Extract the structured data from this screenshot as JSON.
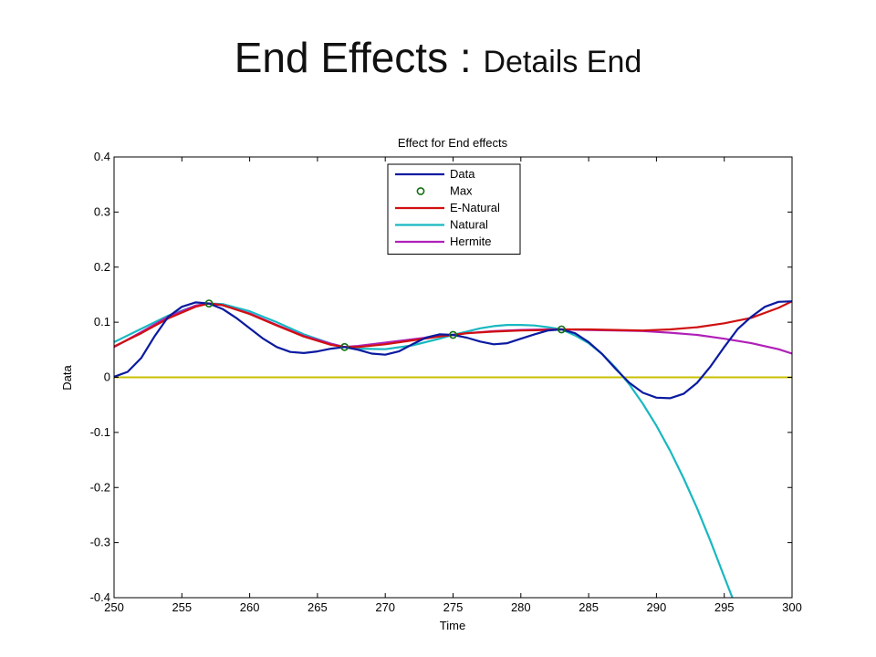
{
  "slide": {
    "title_main": "End Effects : ",
    "title_sub": "Details End"
  },
  "chart_data": {
    "type": "line",
    "title": "Effect for End effects",
    "xlabel": "Time",
    "ylabel": "Data",
    "xlim": [
      250,
      300
    ],
    "ylim": [
      -0.4,
      0.4
    ],
    "xticks": [
      250,
      255,
      260,
      265,
      270,
      275,
      280,
      285,
      290,
      295,
      300
    ],
    "yticks": [
      -0.4,
      -0.3,
      -0.2,
      -0.1,
      0,
      0.1,
      0.2,
      0.3,
      0.4
    ],
    "yticklabels": [
      "-0.4",
      "-0.3",
      "-0.2",
      "-0.1",
      "0",
      "0.1",
      "0.2",
      "0.3",
      "0.4"
    ],
    "grid": false,
    "legend_position": "top-center",
    "zero_line_color": "#c8c000",
    "series": [
      {
        "name": "Data",
        "color": "#0a1aa0",
        "style": "line",
        "x": [
          250,
          251,
          252,
          253,
          254,
          255,
          256,
          257,
          258,
          259,
          260,
          261,
          262,
          263,
          264,
          265,
          266,
          267,
          268,
          269,
          270,
          271,
          272,
          273,
          274,
          275,
          276,
          277,
          278,
          279,
          280,
          281,
          282,
          283,
          284,
          285,
          286,
          287,
          288,
          289,
          290,
          291,
          292,
          293,
          294,
          295,
          296,
          297,
          298,
          299,
          300
        ],
        "y": [
          0.001,
          0.01,
          0.035,
          0.075,
          0.11,
          0.128,
          0.136,
          0.134,
          0.124,
          0.108,
          0.089,
          0.07,
          0.055,
          0.046,
          0.044,
          0.047,
          0.052,
          0.055,
          0.05,
          0.043,
          0.041,
          0.047,
          0.06,
          0.072,
          0.078,
          0.077,
          0.072,
          0.065,
          0.06,
          0.062,
          0.07,
          0.078,
          0.085,
          0.087,
          0.08,
          0.064,
          0.042,
          0.015,
          -0.01,
          -0.028,
          -0.037,
          -0.038,
          -0.03,
          -0.01,
          0.02,
          0.055,
          0.088,
          0.11,
          0.128,
          0.137,
          0.138
        ]
      },
      {
        "name": "Max",
        "color": "#107010",
        "style": "marker",
        "x": [
          257,
          267,
          275,
          283
        ],
        "y": [
          0.134,
          0.055,
          0.077,
          0.087
        ]
      },
      {
        "name": "E-Natural",
        "color": "#d01010",
        "style": "line",
        "x": [
          250,
          252,
          254,
          256,
          257,
          258,
          260,
          262,
          264,
          266,
          267,
          268,
          270,
          272,
          274,
          275,
          276,
          278,
          280,
          282,
          283,
          285,
          287,
          289,
          291,
          293,
          295,
          297,
          299,
          300
        ],
        "y": [
          0.056,
          0.08,
          0.107,
          0.128,
          0.134,
          0.131,
          0.115,
          0.094,
          0.074,
          0.059,
          0.055,
          0.055,
          0.06,
          0.067,
          0.074,
          0.077,
          0.08,
          0.083,
          0.085,
          0.086,
          0.087,
          0.087,
          0.086,
          0.085,
          0.087,
          0.091,
          0.098,
          0.108,
          0.126,
          0.138
        ]
      },
      {
        "name": "Natural",
        "color": "#18b8c0",
        "style": "line",
        "x": [
          250,
          252,
          254,
          256,
          257,
          258,
          260,
          262,
          264,
          266,
          267,
          268,
          270,
          272,
          274,
          275,
          276,
          277,
          278,
          279,
          280,
          281,
          282,
          283,
          284,
          285,
          286,
          287,
          288,
          289,
          290,
          291,
          292,
          293,
          294,
          295,
          295.6
        ],
        "y": [
          0.064,
          0.088,
          0.112,
          0.13,
          0.134,
          0.133,
          0.12,
          0.1,
          0.078,
          0.061,
          0.055,
          0.052,
          0.051,
          0.058,
          0.07,
          0.077,
          0.083,
          0.089,
          0.093,
          0.095,
          0.095,
          0.094,
          0.091,
          0.087,
          0.076,
          0.062,
          0.042,
          0.017,
          -0.013,
          -0.048,
          -0.088,
          -0.133,
          -0.183,
          -0.238,
          -0.298,
          -0.362,
          -0.4
        ]
      },
      {
        "name": "Hermite",
        "color": "#b020b8",
        "style": "line",
        "x": [
          250,
          252,
          254,
          256,
          257,
          258,
          260,
          262,
          264,
          266,
          267,
          268,
          270,
          272,
          274,
          275,
          276,
          278,
          280,
          282,
          283,
          285,
          287,
          289,
          291,
          293,
          295,
          297,
          299,
          300
        ],
        "y": [
          0.055,
          0.082,
          0.11,
          0.13,
          0.134,
          0.131,
          0.116,
          0.095,
          0.075,
          0.061,
          0.055,
          0.057,
          0.063,
          0.069,
          0.075,
          0.077,
          0.08,
          0.084,
          0.086,
          0.087,
          0.087,
          0.086,
          0.085,
          0.084,
          0.081,
          0.077,
          0.07,
          0.062,
          0.051,
          0.043
        ]
      }
    ]
  }
}
